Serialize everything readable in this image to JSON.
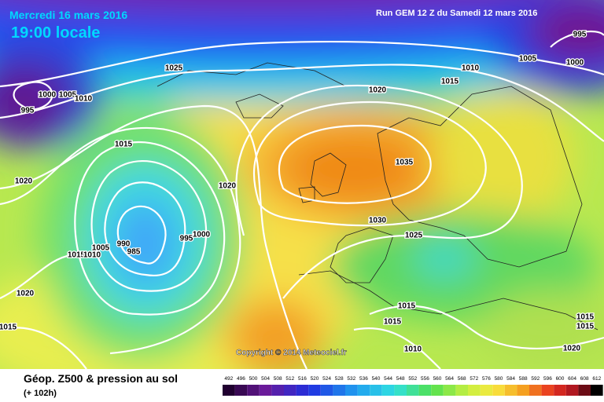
{
  "header": {
    "date": "Mercredi 16 mars 2016",
    "time": "19:00 locale",
    "run": "Run GEM 12 Z du Samedi 12 mars 2016"
  },
  "copyright": "Copyright © 2014 Meteociel.fr",
  "legend": {
    "title": "Géop. Z500 & pression au sol",
    "lead": "(+ 102h)",
    "scale": [
      492,
      496,
      500,
      504,
      508,
      512,
      516,
      520,
      524,
      528,
      532,
      536,
      540,
      544,
      548,
      552,
      556,
      560,
      564,
      568,
      572,
      576,
      580,
      584,
      588,
      592,
      596,
      600,
      604,
      608,
      612
    ]
  },
  "isobar_labels": [
    995,
    1000,
    1005,
    1010,
    1015,
    1020,
    1025,
    1000,
    1005,
    1010,
    995,
    1015,
    1020,
    1020,
    1035,
    1030,
    1025,
    995,
    1000,
    990,
    985,
    1005,
    1015,
    1010,
    1020,
    1015,
    1015,
    1015,
    1010,
    1015,
    1015,
    1020
  ]
}
